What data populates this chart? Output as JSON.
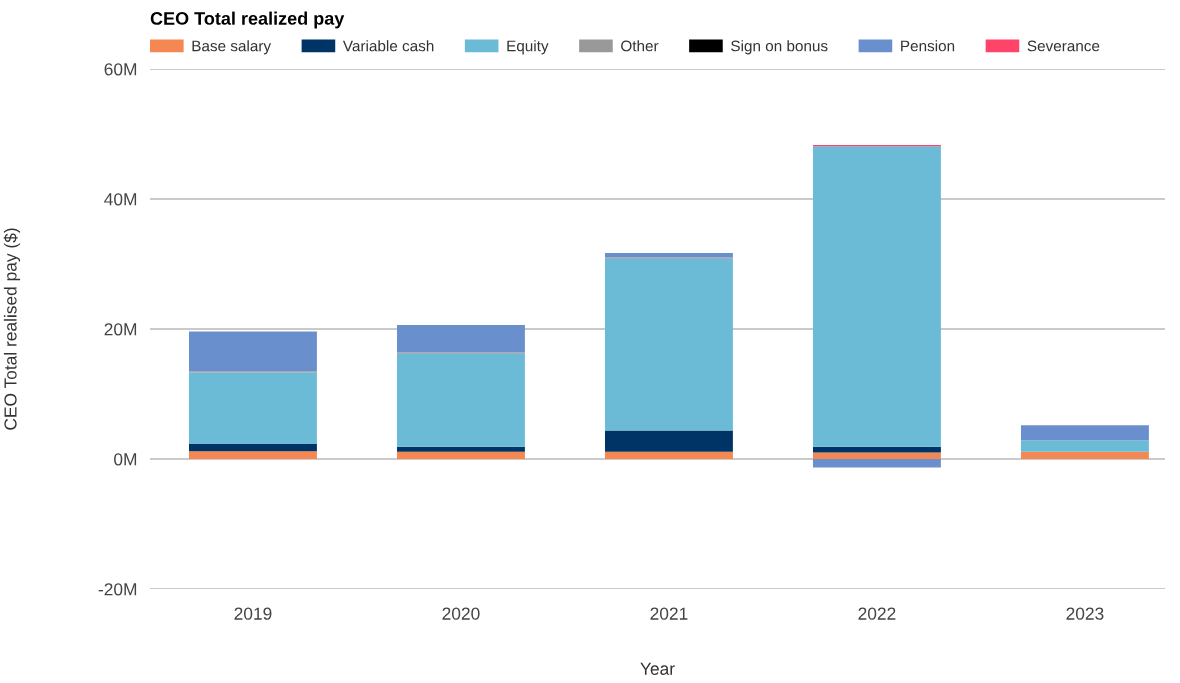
{
  "chart_data": {
    "type": "bar",
    "title": "CEO Total realized pay",
    "xlabel": "Year",
    "ylabel": "CEO Total realised pay ($)",
    "categories": [
      "2019",
      "2020",
      "2021",
      "2022",
      "2023"
    ],
    "stacked": true,
    "series": [
      {
        "name": "Base salary",
        "color": "#f58753",
        "values": [
          1.2,
          1.1,
          1.1,
          1.0,
          1.1
        ]
      },
      {
        "name": "Variable cash",
        "color": "#003366",
        "values": [
          1.1,
          0.8,
          3.3,
          0.9,
          null
        ]
      },
      {
        "name": "Equity",
        "color": "#6bbbd6",
        "values": [
          11.0,
          14.3,
          26.4,
          46.2,
          1.8
        ]
      },
      {
        "name": "Other",
        "color": "#999999",
        "values": [
          0.2,
          0.2,
          0.2,
          null,
          null
        ]
      },
      {
        "name": "Sign on bonus",
        "color": "#000000",
        "values": [
          null,
          null,
          null,
          null,
          null
        ]
      },
      {
        "name": "Pension",
        "color": "#6a8fcd",
        "values": [
          6.1,
          4.2,
          0.7,
          -1.3,
          2.3
        ]
      },
      {
        "name": "Severance",
        "color": "#ff4369",
        "values": [
          null,
          null,
          null,
          0.2,
          null
        ]
      }
    ],
    "ylim": [
      -20,
      60
    ],
    "yticks": [
      {
        "value": -20,
        "label": "-20M"
      },
      {
        "value": 0,
        "label": "0M"
      },
      {
        "value": 20,
        "label": "20M"
      },
      {
        "value": 40,
        "label": "40M"
      },
      {
        "value": 60,
        "label": "60M"
      }
    ],
    "grid": "y",
    "legend": "top"
  }
}
